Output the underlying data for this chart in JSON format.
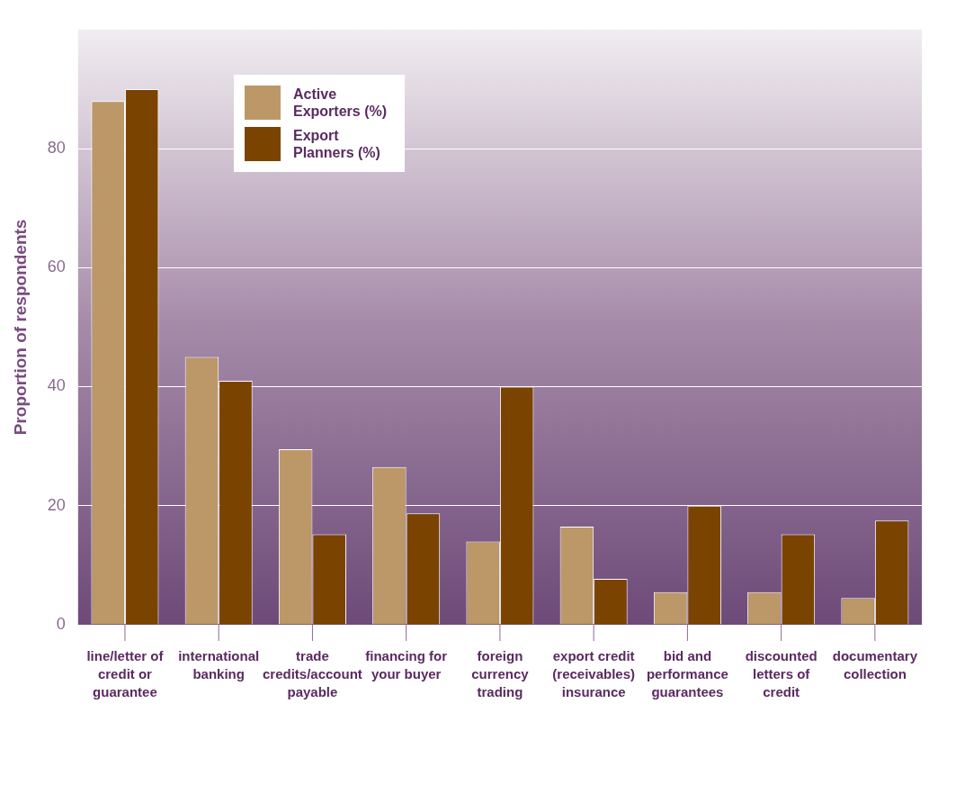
{
  "chart_data": {
    "type": "bar",
    "ylabel": "Proportion of respondents",
    "categories": [
      "line/letter of credit or guarantee",
      "international banking",
      "trade credits/account payable",
      "financing for your buyer",
      "foreign currency trading",
      "export credit (receivables) insurance",
      "bid and performance guarantees",
      "discounted letters of credit",
      "documentary collection"
    ],
    "series": [
      {
        "name": "Active Exporters (%)",
        "color": "#bc9768",
        "values": [
          88,
          45,
          29.5,
          26.5,
          14,
          16.5,
          5.5,
          5.5,
          4.5
        ]
      },
      {
        "name": "Export Planners (%)",
        "color": "#7b4300",
        "values": [
          90,
          41,
          15.2,
          18.7,
          40,
          7.7,
          20,
          15.2,
          17.5
        ]
      }
    ],
    "ylim": [
      0,
      100
    ],
    "yticks": [
      0,
      20,
      40,
      60,
      80
    ],
    "grid": "y",
    "legend": "top left"
  }
}
